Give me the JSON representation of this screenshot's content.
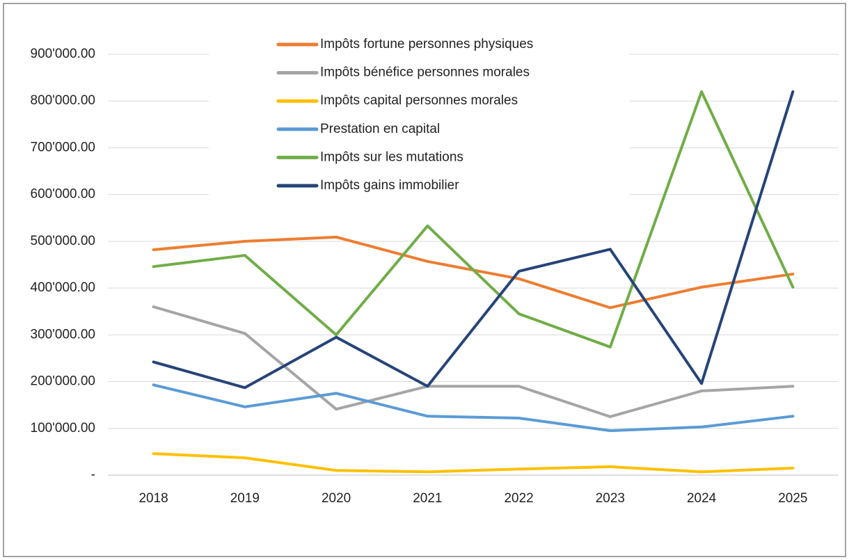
{
  "chart_data": {
    "type": "line",
    "categories": [
      "2018",
      "2019",
      "2020",
      "2021",
      "2022",
      "2023",
      "2024",
      "2025"
    ],
    "series": [
      {
        "name": "Impôts fortune personnes physiques",
        "color": "#ed7d31",
        "values": [
          482000,
          500000,
          509000,
          457000,
          420000,
          358000,
          402000,
          430000
        ]
      },
      {
        "name": "Impôts bénéfice personnes morales",
        "color": "#a5a5a5",
        "values": [
          360000,
          303000,
          141000,
          190000,
          190000,
          125000,
          180000,
          190000
        ]
      },
      {
        "name": "Impôts capital personnes morales",
        "color": "#ffc000",
        "values": [
          46000,
          37000,
          10000,
          7000,
          13000,
          18000,
          7000,
          15000
        ]
      },
      {
        "name": "Prestation en capital",
        "color": "#5b9bd5",
        "values": [
          193000,
          146000,
          175000,
          126000,
          122000,
          95000,
          103000,
          126000
        ]
      },
      {
        "name": "Impôts sur les mutations",
        "color": "#70ad47",
        "values": [
          446000,
          470000,
          300000,
          533000,
          345000,
          274000,
          820000,
          402000
        ]
      },
      {
        "name": "Impôts gains immobilier",
        "color": "#264478",
        "values": [
          242000,
          187000,
          295000,
          190000,
          436000,
          483000,
          196000,
          820000
        ]
      }
    ],
    "ylim": [
      0,
      900000
    ],
    "yticks": [
      {
        "value": 0,
        "label": "-"
      },
      {
        "value": 100000,
        "label": "100'000.00"
      },
      {
        "value": 200000,
        "label": "200'000.00"
      },
      {
        "value": 300000,
        "label": "300'000.00"
      },
      {
        "value": 400000,
        "label": "400'000.00"
      },
      {
        "value": 500000,
        "label": "500'000.00"
      },
      {
        "value": 600000,
        "label": "600'000.00"
      },
      {
        "value": 700000,
        "label": "700'000.00"
      },
      {
        "value": 800000,
        "label": "800'000.00"
      },
      {
        "value": 900000,
        "label": "900'000.00"
      }
    ],
    "grid": true,
    "legend": "top"
  }
}
